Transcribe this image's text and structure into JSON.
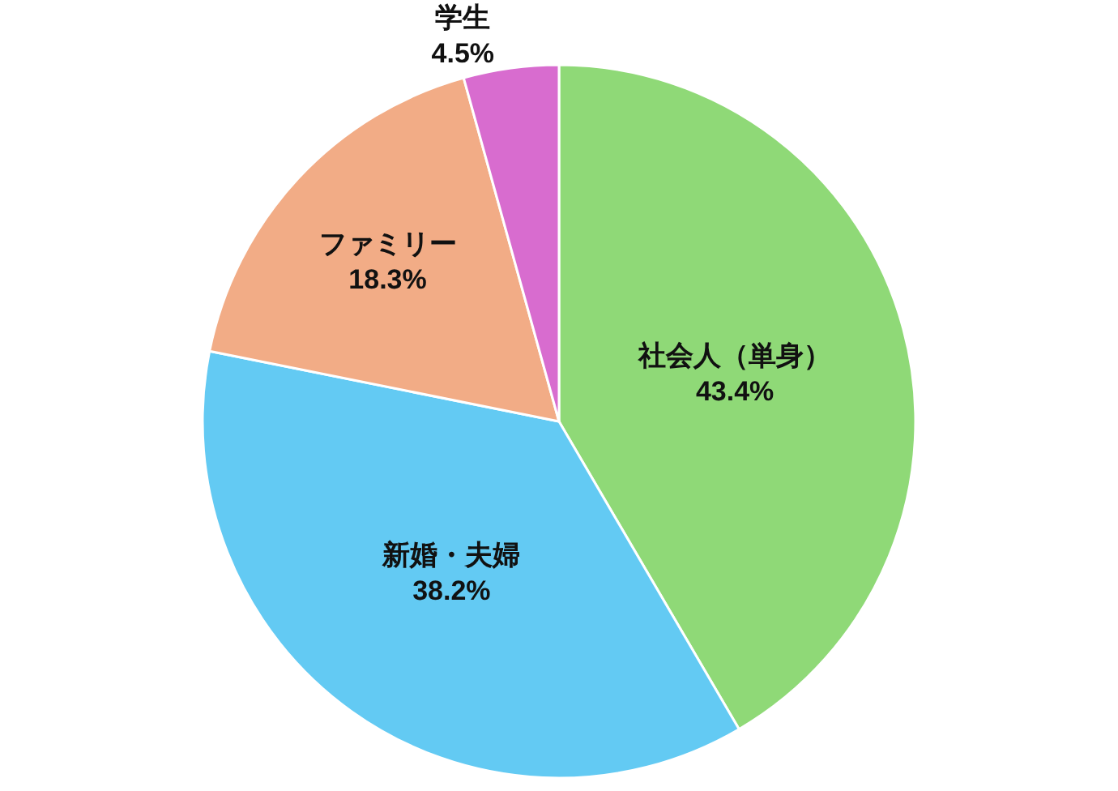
{
  "chart_data": {
    "type": "pie",
    "categories": [
      "社会人（単身）",
      "新婚・夫婦",
      "ファミリー",
      "学生"
    ],
    "values": [
      43.4,
      38.2,
      18.3,
      4.5
    ],
    "value_labels": [
      "43.4%",
      "38.2%",
      "18.3%",
      "4.5%"
    ],
    "colors": [
      "#8fd977",
      "#63caf3",
      "#f2ac86",
      "#d86ccf"
    ],
    "legend": false
  }
}
